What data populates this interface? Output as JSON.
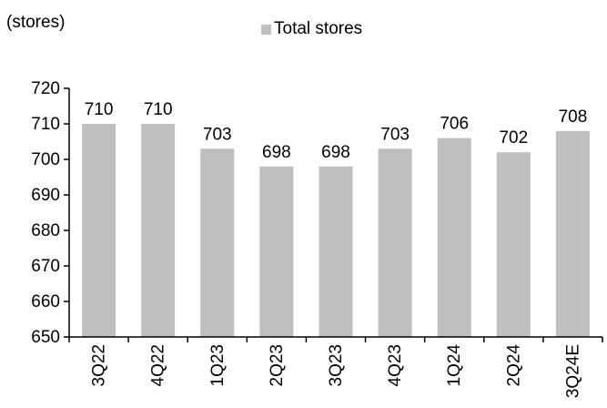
{
  "chart_data": {
    "type": "bar",
    "unit_label": "(stores)",
    "categories": [
      "3Q22",
      "4Q22",
      "1Q23",
      "2Q23",
      "3Q23",
      "4Q23",
      "1Q24",
      "2Q24",
      "3Q24E"
    ],
    "series": [
      {
        "name": "Total stores",
        "values": [
          710,
          710,
          703,
          698,
          698,
          703,
          706,
          702,
          708
        ]
      }
    ],
    "yticks": [
      650,
      660,
      670,
      680,
      690,
      700,
      710,
      720
    ],
    "ylim": [
      650,
      720
    ],
    "grid": false,
    "legend": "top-center",
    "bar_color": "#bfbfbf"
  }
}
